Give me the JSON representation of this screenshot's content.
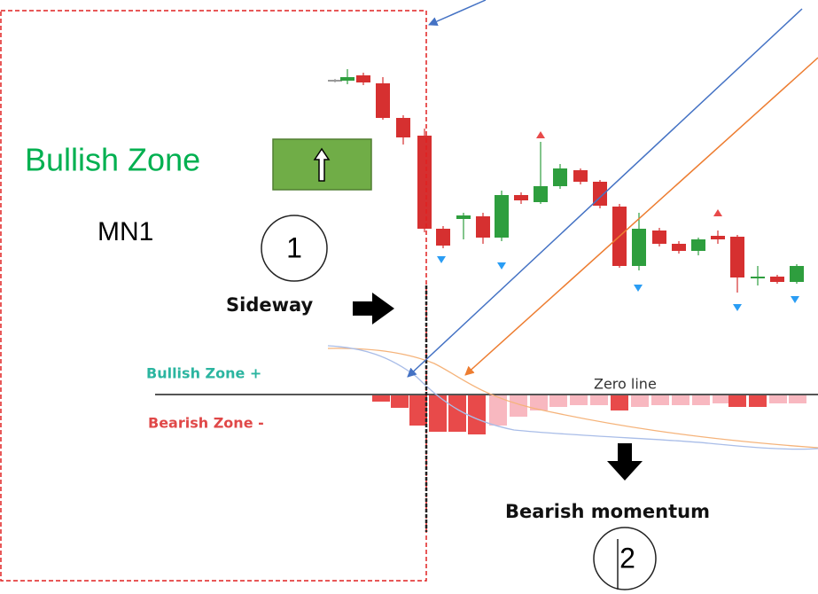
{
  "labels": {
    "bullish_zone": "Bullish Zone",
    "timeframe": "MN1",
    "step_one": "1",
    "sideway": "Sideway",
    "bullish_zone_plus": "Bullish Zone +",
    "bearish_zone_minus": "Bearish Zone -",
    "zero_line": "Zero line",
    "bearish_momentum": "Bearish momentum",
    "step_two": "2"
  }
}
